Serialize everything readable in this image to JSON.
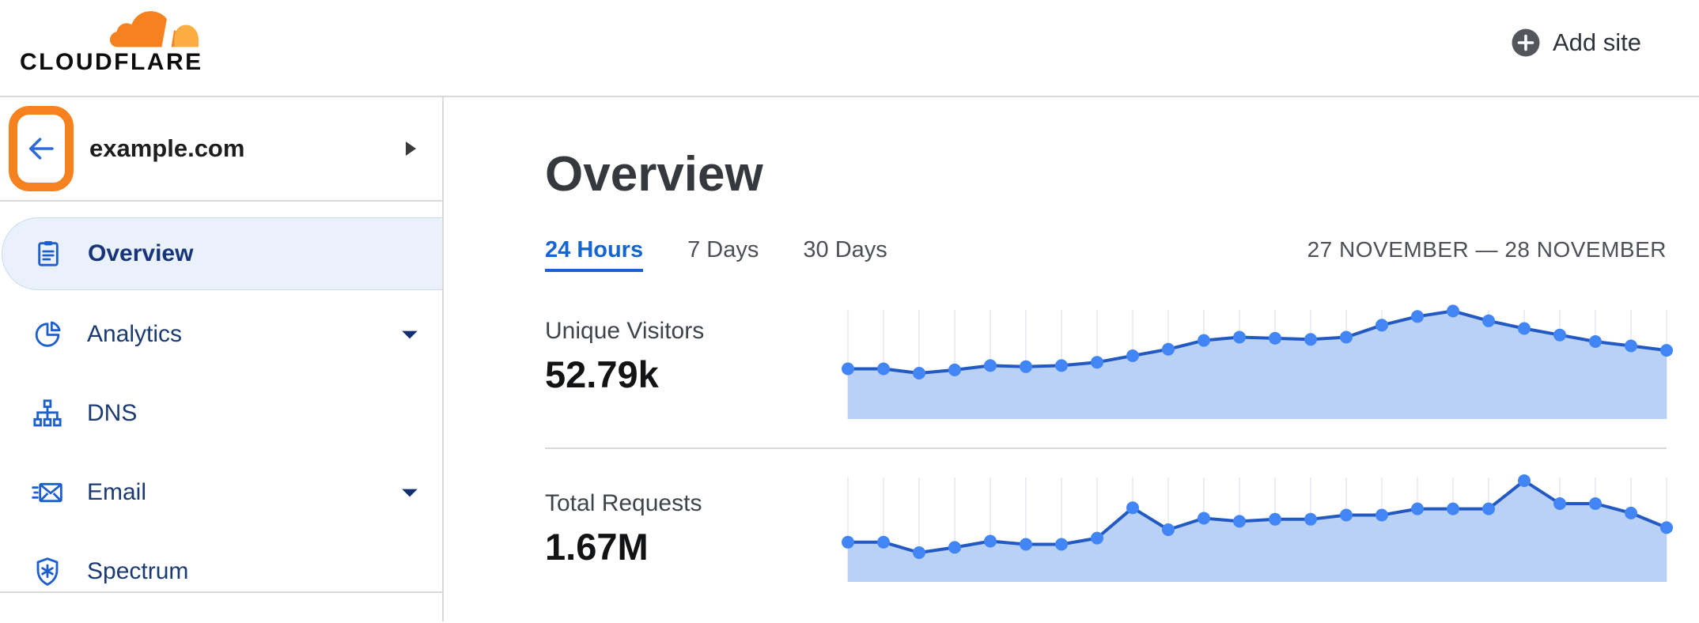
{
  "header": {
    "logo_text": "CLOUDFLARE",
    "add_site_label": "Add site"
  },
  "sidebar": {
    "site": {
      "name": "example.com"
    },
    "items": [
      {
        "label": "Overview",
        "icon": "clipboard-icon",
        "active": true,
        "has_submenu": false
      },
      {
        "label": "Analytics",
        "icon": "pie-chart-icon",
        "active": false,
        "has_submenu": true
      },
      {
        "label": "DNS",
        "icon": "sitemap-icon",
        "active": false,
        "has_submenu": false
      },
      {
        "label": "Email",
        "icon": "email-icon",
        "active": false,
        "has_submenu": true
      },
      {
        "label": "Spectrum",
        "icon": "shield-icon",
        "active": false,
        "has_submenu": false
      }
    ]
  },
  "main": {
    "title": "Overview",
    "tabs": [
      {
        "label": "24 Hours",
        "active": true
      },
      {
        "label": "7 Days",
        "active": false
      },
      {
        "label": "30 Days",
        "active": false
      }
    ],
    "date_range": "27 NOVEMBER — 28 NOVEMBER",
    "metrics": [
      {
        "label": "Unique Visitors",
        "value": "52.79k"
      },
      {
        "label": "Total Requests",
        "value": "1.67M"
      }
    ]
  },
  "colors": {
    "brand_orange": "#f6821f",
    "brand_orange_light": "#fbad41",
    "link_blue": "#1465d2",
    "nav_icon_blue": "#1d5fce",
    "nav_text_navy": "#1c3a72",
    "chart": {
      "line": "#2359c2",
      "dot": "#4285f4",
      "fill": "#b8d1f4",
      "gridline": "#ecedf2"
    }
  },
  "chart_data": [
    {
      "type": "area",
      "title": "Unique Visitors",
      "total_label": "52.79k",
      "x": [
        0,
        1,
        2,
        3,
        4,
        5,
        6,
        7,
        8,
        9,
        10,
        11,
        12,
        13,
        14,
        15,
        16,
        17,
        18,
        19,
        20,
        21,
        22,
        23
      ],
      "values": [
        46,
        46,
        42,
        45,
        49,
        48,
        49,
        52,
        58,
        64,
        72,
        75,
        74,
        73,
        75,
        86,
        94,
        99,
        90,
        83,
        77,
        71,
        67,
        63
      ],
      "values_unit": "relative height % (sparkline, no axis labels shown)",
      "ylim": [
        0,
        100
      ],
      "xlabel": "",
      "ylabel": "",
      "grid": "vertical",
      "legend": false
    },
    {
      "type": "area",
      "title": "Total Requests",
      "total_label": "1.67M",
      "x": [
        0,
        1,
        2,
        3,
        4,
        5,
        6,
        7,
        8,
        9,
        10,
        11,
        12,
        13,
        14,
        15,
        16,
        17,
        18,
        19,
        20,
        21,
        22,
        23
      ],
      "values": [
        38,
        38,
        28,
        33,
        39,
        36,
        36,
        42,
        71,
        50,
        61,
        58,
        60,
        60,
        64,
        64,
        70,
        70,
        70,
        97,
        75,
        75,
        66,
        52
      ],
      "values_unit": "relative height % (sparkline, no axis labels shown)",
      "ylim": [
        0,
        100
      ],
      "xlabel": "",
      "ylabel": "",
      "grid": "vertical",
      "legend": false
    }
  ]
}
